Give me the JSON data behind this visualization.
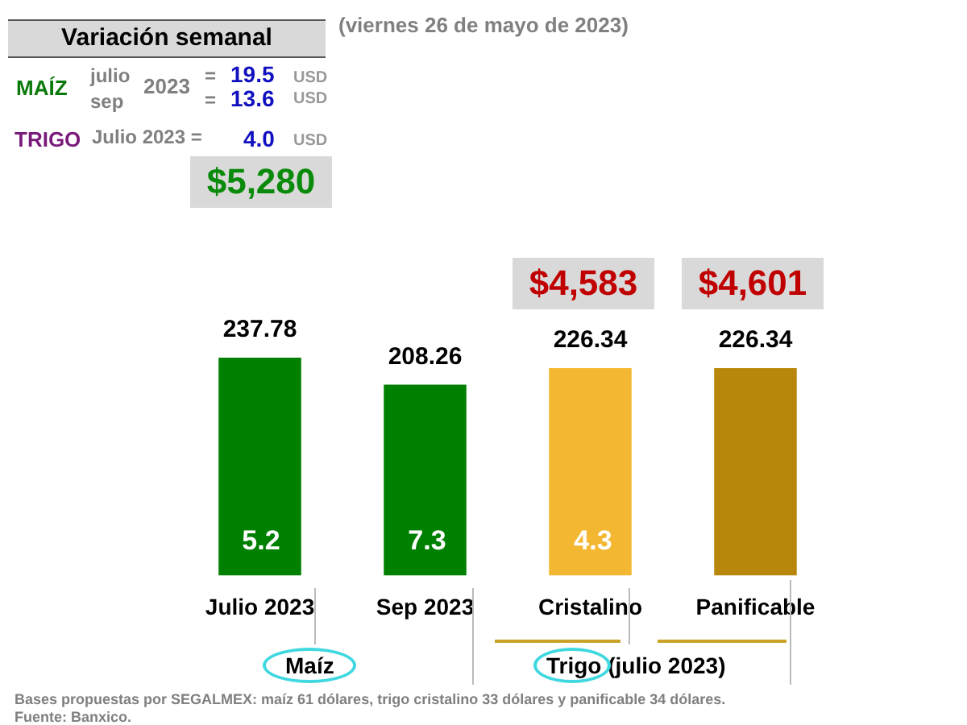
{
  "chart_data": {
    "type": "bar",
    "subtitle": "(viernes 26 de mayo de 2023)",
    "categories": [
      "Julio 2023",
      "Sep 2023",
      "Cristalino",
      "Panificable"
    ],
    "values": [
      237.78,
      208.26,
      226.34,
      226.34
    ],
    "colors": [
      "#008000",
      "#008000",
      "#f4b732",
      "#b8860b"
    ],
    "tick_labels": "x",
    "grid": false,
    "legend": false,
    "data_labels": true,
    "annotations": [
      "Variación semanal",
      "MAÍZ",
      "julio",
      "sep",
      "2023",
      "=",
      "19.5",
      "USD",
      "=",
      "13.6",
      "USD",
      "TRIGO",
      "Julio 2023 =",
      "4.0",
      "USD",
      "Maíz",
      "Trigo (julio 2023)",
      "Bases propuestas por SEGALMEX: maíz 61 dólares, trigo cristalino 33 dólares y panificable 34 dólares.",
      "Fuente: Banxico.",
      "$5,280",
      "$4,583",
      "$4,601",
      "5.2",
      "7.3",
      "4.3"
    ]
  }
}
